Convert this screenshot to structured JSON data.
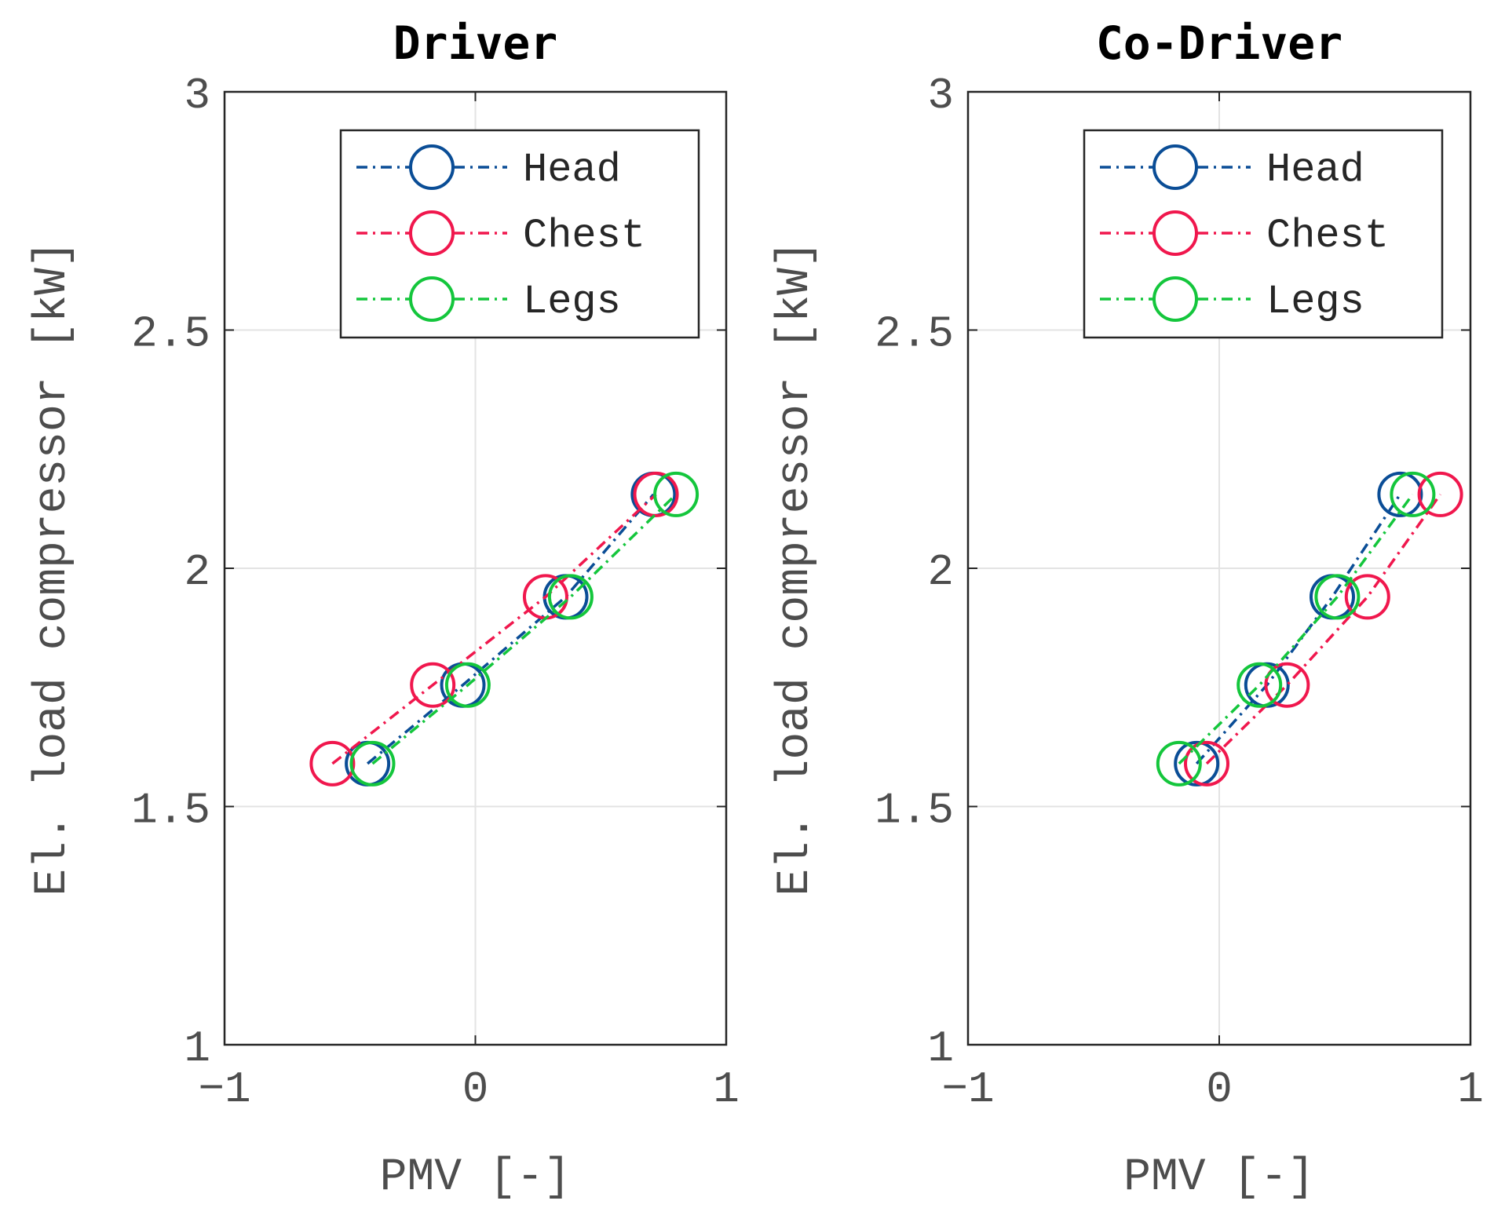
{
  "chart_data": [
    {
      "type": "line",
      "title": "Driver",
      "xlabel": "PMV  [-]",
      "ylabel": "El. load compressor  [kW]",
      "xlim": [
        -1,
        1
      ],
      "ylim": [
        1,
        3
      ],
      "xticks": [
        -1,
        0,
        1
      ],
      "xtick_labels": [
        "−1",
        "0",
        "1"
      ],
      "yticks": [
        1,
        1.5,
        2,
        2.5,
        3
      ],
      "ytick_labels": [
        "1",
        "1.5",
        "2",
        "2.5",
        "3"
      ],
      "grid": true,
      "legend_position": "top-right",
      "series": [
        {
          "name": "Head",
          "color": "#0a4d96",
          "x": [
            -0.43,
            -0.05,
            0.36,
            0.71
          ],
          "y": [
            1.59,
            1.755,
            1.94,
            2.155
          ]
        },
        {
          "name": "Chest",
          "color": "#f0174d",
          "x": [
            -0.57,
            -0.17,
            0.28,
            0.72
          ],
          "y": [
            1.59,
            1.755,
            1.94,
            2.155
          ]
        },
        {
          "name": "Legs",
          "color": "#14c63c",
          "x": [
            -0.41,
            -0.03,
            0.38,
            0.8
          ],
          "y": [
            1.59,
            1.755,
            1.94,
            2.155
          ]
        }
      ]
    },
    {
      "type": "line",
      "title": "Co-Driver",
      "xlabel": "PMV  [-]",
      "ylabel": "El. load compressor  [kW]",
      "xlim": [
        -1,
        1
      ],
      "ylim": [
        1,
        3
      ],
      "xticks": [
        -1,
        0,
        1
      ],
      "xtick_labels": [
        "−1",
        "0",
        "1"
      ],
      "yticks": [
        1,
        1.5,
        2,
        2.5,
        3
      ],
      "ytick_labels": [
        "1",
        "1.5",
        "2",
        "2.5",
        "3"
      ],
      "grid": true,
      "legend_position": "top-right",
      "series": [
        {
          "name": "Head",
          "color": "#0a4d96",
          "x": [
            -0.09,
            0.19,
            0.45,
            0.72
          ],
          "y": [
            1.59,
            1.755,
            1.94,
            2.155
          ]
        },
        {
          "name": "Chest",
          "color": "#f0174d",
          "x": [
            -0.05,
            0.27,
            0.59,
            0.88
          ],
          "y": [
            1.59,
            1.755,
            1.94,
            2.155
          ]
        },
        {
          "name": "Legs",
          "color": "#14c63c",
          "x": [
            -0.16,
            0.16,
            0.47,
            0.77
          ],
          "y": [
            1.59,
            1.755,
            1.94,
            2.155
          ]
        }
      ]
    }
  ]
}
